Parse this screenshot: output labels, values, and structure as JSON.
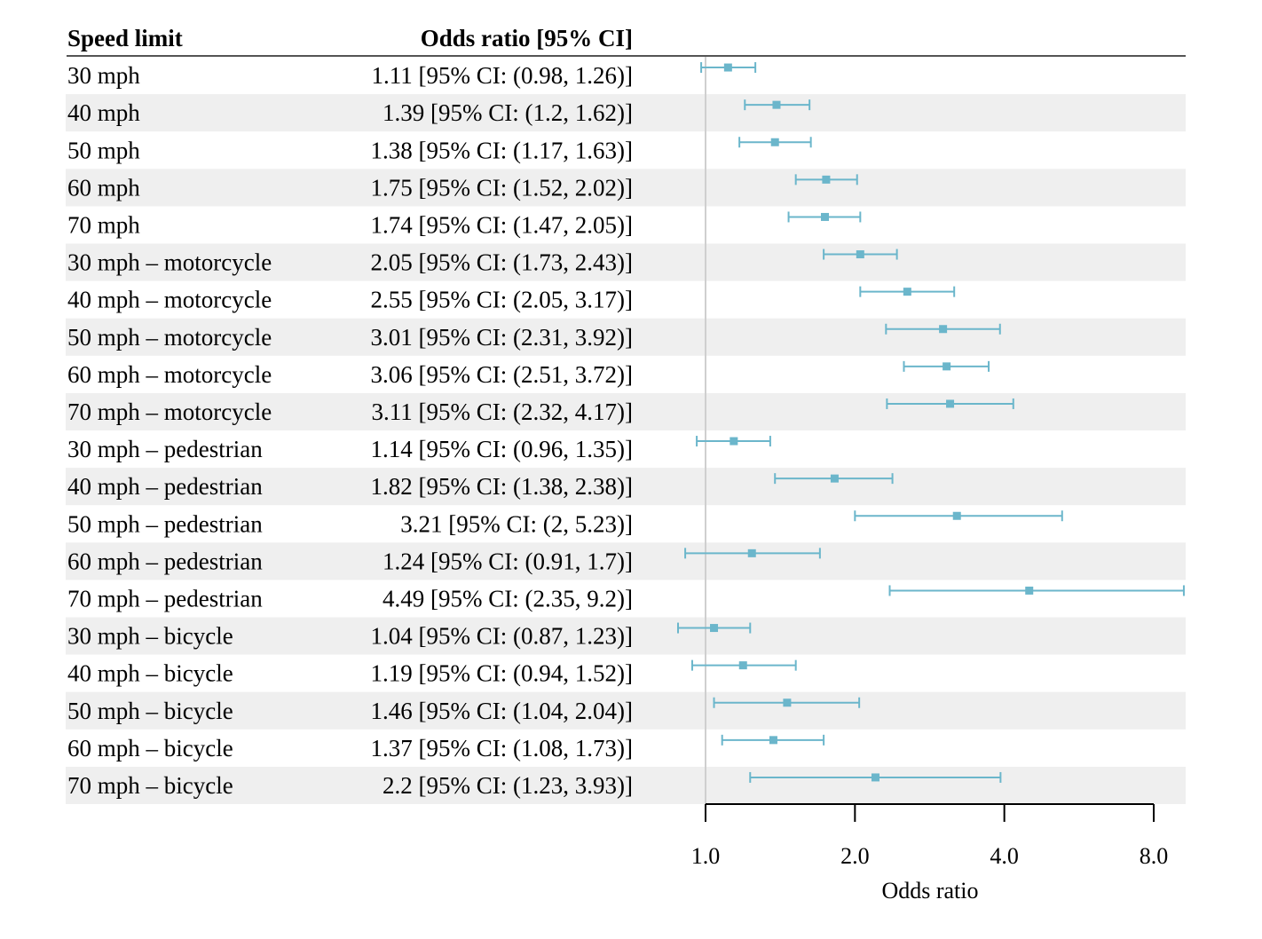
{
  "chart_data": {
    "type": "forest",
    "headers": {
      "label": "Speed limit",
      "value": "Odds ratio [95% CI]"
    },
    "xlabel": "Odds ratio",
    "xscale": "log2",
    "xlim": [
      0.82,
      8.5
    ],
    "reference_line": 1.0,
    "xticks": [
      1.0,
      2.0,
      4.0,
      8.0
    ],
    "xtick_labels": [
      "1.0",
      "2.0",
      "4.0",
      "8.0"
    ],
    "colors": {
      "marker": "#6bb6cb",
      "stripe": "#efefef",
      "reference": "#cfcfcf",
      "axis": "#000000"
    },
    "rows": [
      {
        "label": "30 mph",
        "text": "1.11 [95% CI: (0.98, 1.26)]",
        "or": 1.11,
        "lo": 0.98,
        "hi": 1.26
      },
      {
        "label": "40 mph",
        "text": "1.39 [95% CI: (1.2, 1.62)]",
        "or": 1.39,
        "lo": 1.2,
        "hi": 1.62
      },
      {
        "label": "50 mph",
        "text": "1.38 [95% CI: (1.17, 1.63)]",
        "or": 1.38,
        "lo": 1.17,
        "hi": 1.63
      },
      {
        "label": "60 mph",
        "text": "1.75 [95% CI: (1.52, 2.02)]",
        "or": 1.75,
        "lo": 1.52,
        "hi": 2.02
      },
      {
        "label": "70 mph",
        "text": "1.74 [95% CI: (1.47, 2.05)]",
        "or": 1.74,
        "lo": 1.47,
        "hi": 2.05
      },
      {
        "label": "30 mph – motorcycle",
        "text": "2.05 [95% CI: (1.73, 2.43)]",
        "or": 2.05,
        "lo": 1.73,
        "hi": 2.43
      },
      {
        "label": "40 mph – motorcycle",
        "text": "2.55 [95% CI: (2.05, 3.17)]",
        "or": 2.55,
        "lo": 2.05,
        "hi": 3.17
      },
      {
        "label": "50 mph – motorcycle",
        "text": "3.01 [95% CI: (2.31, 3.92)]",
        "or": 3.01,
        "lo": 2.31,
        "hi": 3.92
      },
      {
        "label": "60 mph – motorcycle",
        "text": "3.06 [95% CI: (2.51, 3.72)]",
        "or": 3.06,
        "lo": 2.51,
        "hi": 3.72
      },
      {
        "label": "70 mph – motorcycle",
        "text": "3.11 [95% CI: (2.32, 4.17)]",
        "or": 3.11,
        "lo": 2.32,
        "hi": 4.17
      },
      {
        "label": "30 mph – pedestrian",
        "text": "1.14 [95% CI: (0.96, 1.35)]",
        "or": 1.14,
        "lo": 0.96,
        "hi": 1.35
      },
      {
        "label": "40 mph – pedestrian",
        "text": "1.82 [95% CI: (1.38, 2.38)]",
        "or": 1.82,
        "lo": 1.38,
        "hi": 2.38
      },
      {
        "label": "50 mph – pedestrian",
        "text": "3.21 [95% CI: (2, 5.23)]",
        "or": 3.21,
        "lo": 2.0,
        "hi": 5.23
      },
      {
        "label": "60 mph – pedestrian",
        "text": "1.24 [95% CI: (0.91, 1.7)]",
        "or": 1.24,
        "lo": 0.91,
        "hi": 1.7
      },
      {
        "label": "70 mph – pedestrian",
        "text": "4.49 [95% CI: (2.35, 9.2)]",
        "or": 4.49,
        "lo": 2.35,
        "hi": 9.2
      },
      {
        "label": "30 mph – bicycle",
        "text": "1.04 [95% CI: (0.87, 1.23)]",
        "or": 1.04,
        "lo": 0.87,
        "hi": 1.23
      },
      {
        "label": "40 mph – bicycle",
        "text": "1.19 [95% CI: (0.94, 1.52)]",
        "or": 1.19,
        "lo": 0.94,
        "hi": 1.52
      },
      {
        "label": "50 mph – bicycle",
        "text": "1.46 [95% CI: (1.04, 2.04)]",
        "or": 1.46,
        "lo": 1.04,
        "hi": 2.04
      },
      {
        "label": "60 mph – bicycle",
        "text": "1.37 [95% CI: (1.08, 1.73)]",
        "or": 1.37,
        "lo": 1.08,
        "hi": 1.73
      },
      {
        "label": "70 mph – bicycle",
        "text": "2.2 [95% CI: (1.23, 3.93)]",
        "or": 2.2,
        "lo": 1.23,
        "hi": 3.93
      }
    ]
  }
}
